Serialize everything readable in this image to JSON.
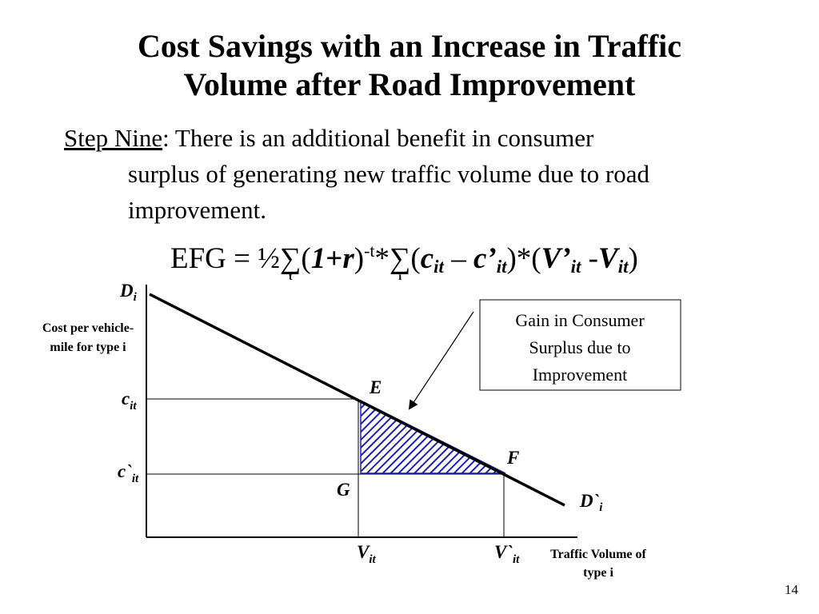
{
  "title": {
    "line1": "Cost Savings with an Increase in Traffic",
    "line2": "Volume after Road Improvement"
  },
  "step": {
    "label": "Step Nine",
    "text_line1": ": There is an additional benefit in consumer",
    "text_line2": "surplus of generating new traffic volume due to road",
    "text_line3": "improvement."
  },
  "formula": {
    "lhs": "EFG = ½",
    "sum_symbol": "∑",
    "sum1_index": "t",
    "one": "1",
    "plus": "+",
    "r": "r",
    "exp": "-t",
    "star": "*",
    "sum2_index": "i",
    "c": "c",
    "it": "it",
    "minus": " – ",
    "c_prime": "c’",
    "close_times": ")*(",
    "v_prime": "V’",
    "dash": " -",
    "v": "V",
    "lparen": "(",
    "rparen": ")"
  },
  "diagram": {
    "y_axis_label_line1": "Cost per vehicle-",
    "y_axis_label_line2": "mile for type i",
    "x_axis_label_line1": "Traffic Volume of",
    "x_axis_label_line2": "type i",
    "demand_label": "D",
    "demand_sub": "i",
    "demand2_label": "D`",
    "demand2_sub": "i",
    "c_label": "c",
    "c2_label": "c`",
    "price_sub": "it",
    "v_label": "V",
    "v2_label": "V`",
    "vol_sub": "it",
    "point_e": "E",
    "point_f": "F",
    "point_g": "G",
    "callout_line1": "Gain in Consumer",
    "callout_line2": "Surplus due to",
    "callout_line3": "Improvement",
    "hatch_color": "#1f1fb8"
  },
  "page_number": "14"
}
